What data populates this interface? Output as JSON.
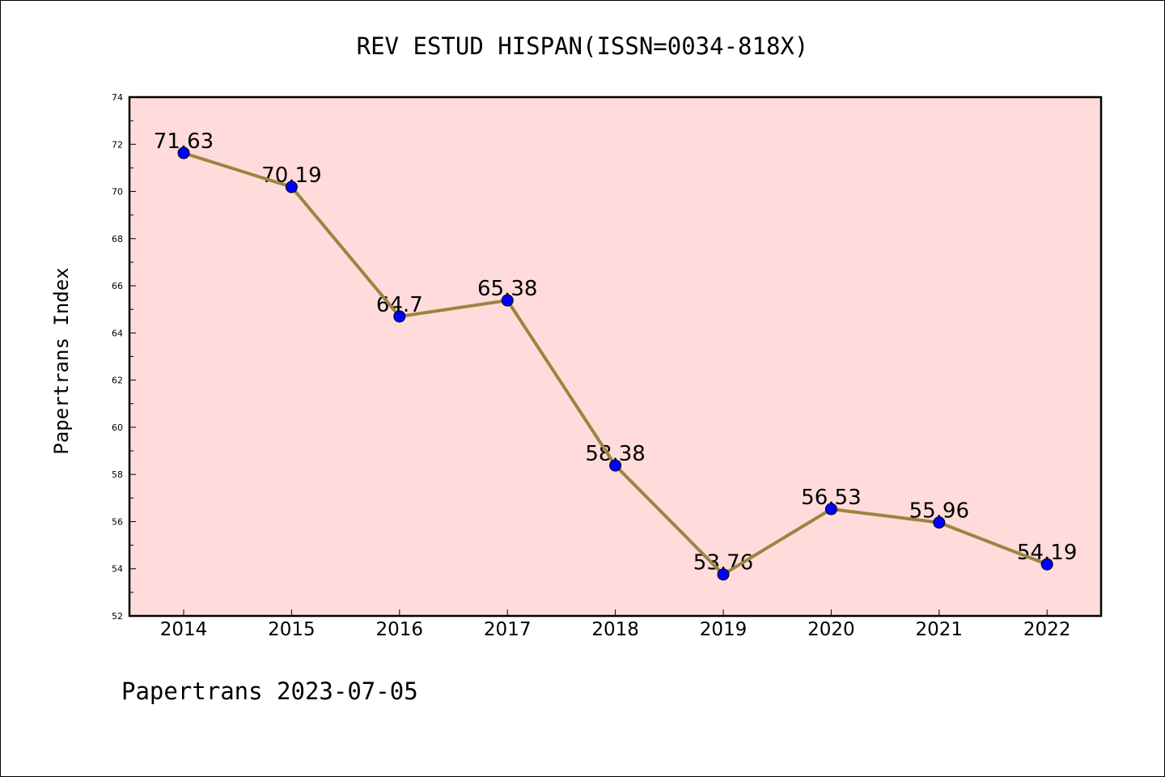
{
  "chart_data": {
    "type": "line",
    "title": "REV ESTUD HISPAN(ISSN=0034-818X)",
    "ylabel": "Papertrans Index",
    "xlabel": "",
    "footer": "Papertrans 2023-07-05",
    "categories": [
      "2014",
      "2015",
      "2016",
      "2017",
      "2018",
      "2019",
      "2020",
      "2021",
      "2022"
    ],
    "series": [
      {
        "values": [
          71.63,
          70.19,
          64.7,
          65.38,
          58.38,
          53.76,
          56.53,
          55.96,
          54.19
        ]
      }
    ],
    "data_labels": [
      "71.63",
      "70.19",
      "64.7",
      "65.38",
      "58.38",
      "53.76",
      "56.53",
      "55.96",
      "54.19"
    ],
    "yticks": [
      "52",
      "54",
      "56",
      "58",
      "60",
      "62",
      "64",
      "66",
      "68",
      "70",
      "72",
      "74"
    ],
    "ylim": [
      52,
      74
    ],
    "grid": false,
    "colors": {
      "plot_background": "#ffdcdb",
      "line": "#9a8540",
      "marker": "#0000ff",
      "axis": "#000000"
    }
  }
}
